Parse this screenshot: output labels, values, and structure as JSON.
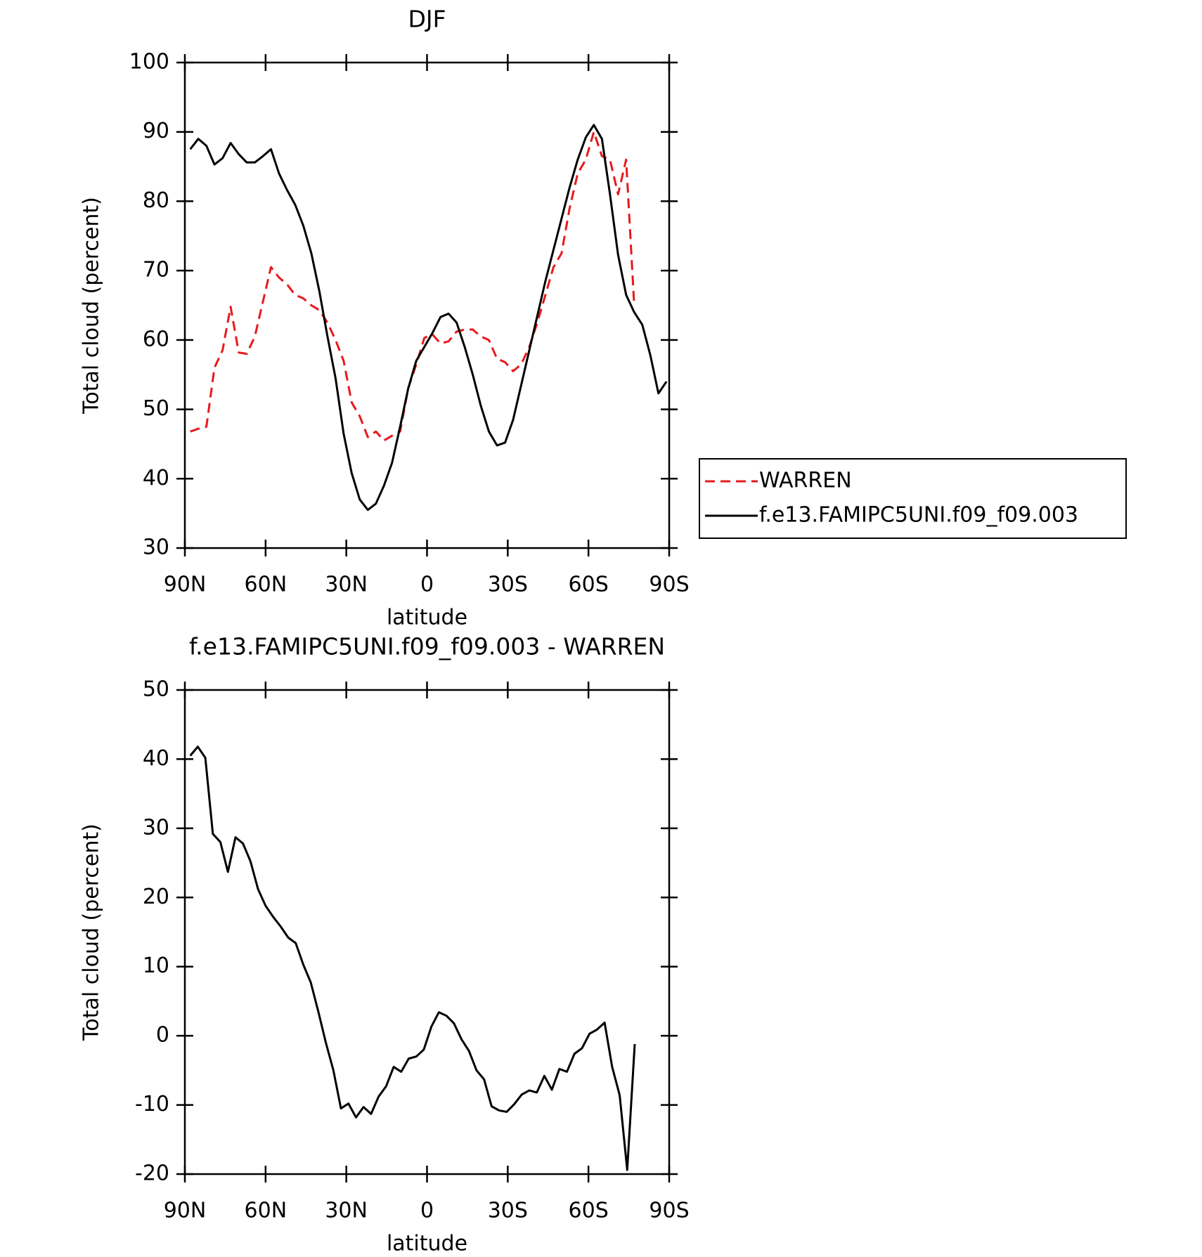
{
  "chart_data": [
    {
      "type": "line",
      "title": "DJF",
      "xlabel": "latitude",
      "ylabel": "Total cloud (percent)",
      "xlim": [
        90,
        -90
      ],
      "xticks": [
        {
          "value": 90,
          "label": "90N"
        },
        {
          "value": 60,
          "label": "60N"
        },
        {
          "value": 30,
          "label": "30N"
        },
        0,
        {
          "value": -30,
          "label": "30S"
        },
        {
          "value": -60,
          "label": "60S"
        },
        {
          "value": -90,
          "label": "90S"
        }
      ],
      "ylim": [
        30,
        100
      ],
      "yticks": [
        30,
        40,
        50,
        60,
        70,
        80,
        90,
        100
      ],
      "legend": "right",
      "series": [
        {
          "name": "WARREN",
          "color": "#e8191c",
          "line_style": "dashed",
          "x": [
            88,
            85,
            82,
            79,
            76,
            73,
            70,
            67,
            64,
            61,
            58,
            55,
            52,
            49,
            46,
            43,
            40,
            37,
            34,
            31,
            28,
            25,
            22,
            19,
            16,
            13,
            10,
            7,
            4,
            1,
            -2,
            -5,
            -8,
            -11,
            -14,
            -17,
            -20,
            -23,
            -26,
            -29,
            -32,
            -35,
            -38,
            -41,
            -44,
            -47,
            -50,
            -53,
            -56,
            -59,
            -62,
            -65,
            -68,
            -71,
            -74,
            -77
          ],
          "values": [
            46.8,
            47.2,
            47.5,
            56,
            58.5,
            64.8,
            58.2,
            58,
            60.5,
            65.5,
            70.5,
            69,
            68,
            66.5,
            66,
            65,
            64.3,
            62.5,
            60,
            57,
            51,
            49,
            46,
            46.8,
            45.5,
            46.2,
            46.8,
            53,
            56.5,
            60.3,
            60.8,
            59.5,
            59.8,
            61.2,
            61.5,
            61.5,
            60.5,
            60,
            57.3,
            56.8,
            55.5,
            56.5,
            59,
            62.5,
            66.5,
            70.5,
            72.5,
            79,
            84,
            86,
            90,
            86.5,
            86,
            81,
            86,
            65
          ]
        },
        {
          "name": "f.e13.FAMIPC5UNI.f09_f09.003",
          "color": "#000000",
          "line_style": "solid",
          "x": [
            88,
            85,
            82,
            79,
            76,
            73,
            70,
            67,
            64,
            61,
            58,
            55,
            52,
            49,
            46,
            43,
            40,
            37,
            34,
            31,
            28,
            25,
            22,
            19,
            16,
            13,
            10,
            7,
            4,
            1,
            -2,
            -5,
            -8,
            -11,
            -14,
            -17,
            -20,
            -23,
            -26,
            -29,
            -32,
            -35,
            -38,
            -41,
            -44,
            -47,
            -50,
            -53,
            -56,
            -59,
            -62,
            -65,
            -68,
            -71,
            -74,
            -77,
            -80,
            -83,
            -86,
            -89
          ],
          "values": [
            87.5,
            89,
            88,
            85.3,
            86.2,
            88.4,
            86.8,
            85.6,
            85.6,
            86.5,
            87.5,
            84,
            81.6,
            79.5,
            76.5,
            72.5,
            67,
            60.5,
            54.5,
            46.5,
            40.8,
            37,
            35.5,
            36.4,
            39,
            42.3,
            47.5,
            53,
            57,
            59,
            61,
            63.3,
            63.8,
            62.5,
            59,
            55,
            50.5,
            46.8,
            44.8,
            45.2,
            48.5,
            53.5,
            58.5,
            63.5,
            68.5,
            73,
            77.5,
            82,
            86,
            89.2,
            91,
            89,
            81,
            72.3,
            66.5,
            64,
            62.2,
            57.8,
            52.3,
            54
          ]
        }
      ]
    },
    {
      "type": "line",
      "title": "f.e13.FAMIPC5UNI.f09_f09.003 - WARREN",
      "xlabel": "latitude",
      "ylabel": "Total cloud (percent)",
      "xlim": [
        90,
        -90
      ],
      "xticks": [
        {
          "value": 90,
          "label": "90N"
        },
        {
          "value": 60,
          "label": "60N"
        },
        {
          "value": 30,
          "label": "30N"
        },
        0,
        {
          "value": -30,
          "label": "30S"
        },
        {
          "value": -60,
          "label": "60S"
        },
        {
          "value": -90,
          "label": "90S"
        }
      ],
      "ylim": [
        -20,
        50
      ],
      "yticks": [
        -20,
        -10,
        0,
        10,
        20,
        30,
        40,
        50
      ],
      "series": [
        {
          "color": "#000000",
          "line_style": "solid",
          "x": [
            88,
            85.2,
            82.4,
            79.6,
            76.8,
            74,
            71.2,
            68.4,
            65.6,
            62.8,
            60,
            57.2,
            54.4,
            51.6,
            48.8,
            46,
            43.2,
            40.4,
            37.6,
            34.8,
            32,
            29.2,
            26.4,
            23.6,
            20.8,
            18,
            15.2,
            12.4,
            9.6,
            6.8,
            4,
            1.2,
            -1.6,
            -4.4,
            -7.2,
            -10,
            -12.8,
            -15.6,
            -18.4,
            -21.2,
            -24,
            -26.8,
            -29.6,
            -32.4,
            -35.2,
            -38,
            -40.8,
            -43.6,
            -46.4,
            -49.2,
            -52,
            -54.8,
            -57.6,
            -60.4,
            -63.2,
            -66,
            -68.8,
            -71.6,
            -74.4,
            -77.2
          ],
          "values": [
            40.5,
            41.8,
            40.2,
            29.2,
            28,
            23.7,
            28.7,
            27.8,
            25.2,
            21.2,
            18.8,
            17.2,
            15.8,
            14.2,
            13.4,
            10.3,
            7.7,
            3.5,
            -1,
            -5,
            -10.5,
            -9.8,
            -11.8,
            -10.3,
            -11.3,
            -8.8,
            -7.3,
            -4.5,
            -5.2,
            -3.3,
            -3,
            -2,
            1.3,
            3.4,
            2.9,
            1.8,
            -0.5,
            -2.2,
            -5,
            -6.3,
            -10.2,
            -10.8,
            -11,
            -9.9,
            -8.5,
            -7.9,
            -8.2,
            -5.8,
            -7.8,
            -4.8,
            -5.2,
            -2.6,
            -1.8,
            0.3,
            0.9,
            1.9,
            -4.5,
            -8.6,
            -19.4,
            -1.2
          ]
        }
      ]
    }
  ]
}
